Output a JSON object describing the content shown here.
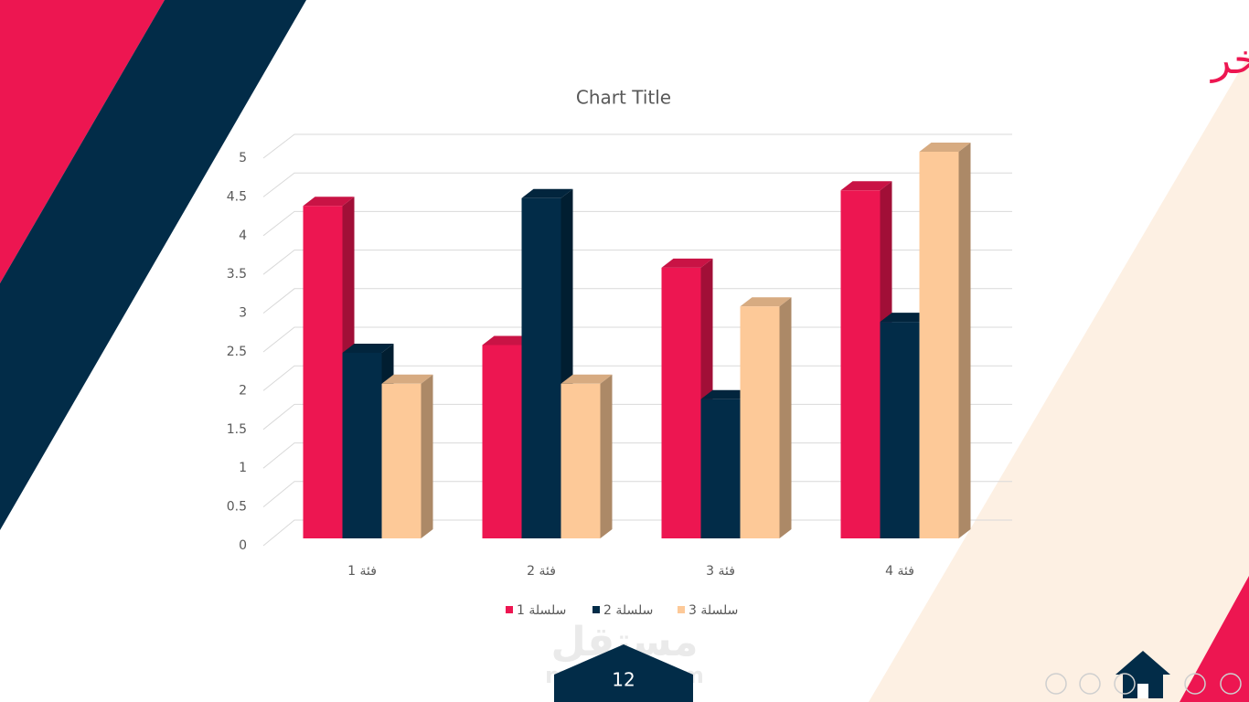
{
  "slide_title": "عنوان عريض آخر",
  "page_number": "12",
  "watermark": {
    "logo": "مستقل",
    "url": "mostaql.com"
  },
  "chart_data": {
    "type": "bar3d",
    "title": "Chart Title",
    "categories": [
      "فئة 1",
      "فئة 2",
      "فئة 3",
      "فئة 4"
    ],
    "series": [
      {
        "name": "سلسلة 1",
        "color": "#ed1651",
        "values": [
          4.3,
          2.5,
          3.5,
          4.5
        ]
      },
      {
        "name": "سلسلة 2",
        "color": "#022c48",
        "values": [
          2.4,
          4.4,
          1.8,
          2.8
        ]
      },
      {
        "name": "سلسلة 3",
        "color": "#fdc998",
        "values": [
          2,
          2,
          3,
          5
        ]
      }
    ],
    "ylim": [
      0,
      5
    ],
    "yticks": [
      0,
      0.5,
      1,
      1.5,
      2,
      2.5,
      3,
      3.5,
      4,
      4.5,
      5
    ],
    "grid": true,
    "legend": "bottom"
  }
}
